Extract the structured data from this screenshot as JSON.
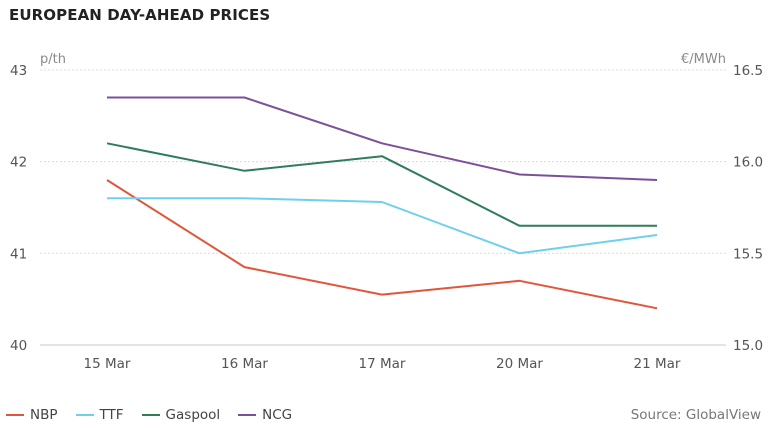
{
  "title": "EUROPEAN DAY-AHEAD PRICES",
  "source": "Source: GlobalView",
  "chart_data": {
    "type": "line",
    "categories": [
      "15 Mar",
      "16 Mar",
      "17 Mar",
      "20 Mar",
      "21 Mar"
    ],
    "left_axis": {
      "unit": "p/th",
      "min": 40,
      "max": 43,
      "ticks": [
        "40",
        "41",
        "42",
        "43"
      ]
    },
    "right_axis": {
      "unit": "€/MWh",
      "min": 15.0,
      "max": 16.5,
      "ticks": [
        "15.0",
        "15.5",
        "16.0",
        "16.5"
      ]
    },
    "grid": true,
    "legend_position": "bottom-left",
    "series": [
      {
        "name": "NBP",
        "axis": "left",
        "color": "#e2553a",
        "values": [
          41.8,
          40.85,
          40.55,
          40.7,
          40.4
        ]
      },
      {
        "name": "TTF",
        "axis": "right",
        "color": "#6dd0ee",
        "values": [
          15.8,
          15.8,
          15.78,
          15.5,
          15.6
        ]
      },
      {
        "name": "Gaspool",
        "axis": "right",
        "color": "#2e7d5b",
        "values": [
          16.1,
          15.95,
          16.03,
          15.65,
          15.65
        ]
      },
      {
        "name": "NCG",
        "axis": "right",
        "color": "#7b4f9c",
        "values": [
          16.35,
          16.35,
          16.1,
          15.93,
          15.9
        ]
      }
    ]
  }
}
